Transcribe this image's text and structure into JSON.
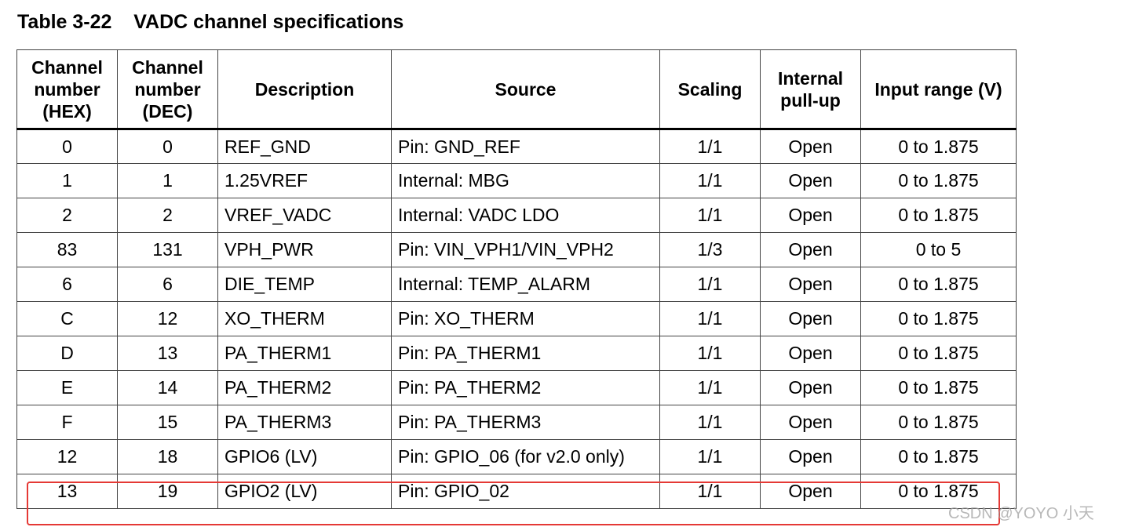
{
  "header": {
    "title": "Table 3-22    VADC channel specifications"
  },
  "table": {
    "columns": [
      "Channel number (HEX)",
      "Channel number (DEC)",
      "Description",
      "Source",
      "Scaling",
      "Internal pull-up",
      "Input range (V)"
    ],
    "rows": [
      [
        "0",
        "0",
        "REF_GND",
        "Pin: GND_REF",
        "1/1",
        "Open",
        "0 to 1.875"
      ],
      [
        "1",
        "1",
        "1.25VREF",
        "Internal: MBG",
        "1/1",
        "Open",
        "0 to 1.875"
      ],
      [
        "2",
        "2",
        "VREF_VADC",
        "Internal: VADC LDO",
        "1/1",
        "Open",
        "0 to 1.875"
      ],
      [
        "83",
        "131",
        "VPH_PWR",
        "Pin: VIN_VPH1/VIN_VPH2",
        "1/3",
        "Open",
        "0 to 5"
      ],
      [
        "6",
        "6",
        "DIE_TEMP",
        "Internal: TEMP_ALARM",
        "1/1",
        "Open",
        "0 to 1.875"
      ],
      [
        "C",
        "12",
        "XO_THERM",
        "Pin: XO_THERM",
        "1/1",
        "Open",
        "0 to 1.875"
      ],
      [
        "D",
        "13",
        "PA_THERM1",
        "Pin: PA_THERM1",
        "1/1",
        "Open",
        "0 to 1.875"
      ],
      [
        "E",
        "14",
        "PA_THERM2",
        "Pin: PA_THERM2",
        "1/1",
        "Open",
        "0 to 1.875"
      ],
      [
        "F",
        "15",
        "PA_THERM3",
        "Pin: PA_THERM3",
        "1/1",
        "Open",
        "0 to 1.875"
      ],
      [
        "12",
        "18",
        "GPIO6 (LV)",
        "Pin: GPIO_06 (for v2.0 only)",
        "1/1",
        "Open",
        "0 to 1.875"
      ],
      [
        "13",
        "19",
        "GPIO2 (LV)",
        "Pin: GPIO_02",
        "1/1",
        "Open",
        "0 to 1.875"
      ]
    ]
  },
  "watermark": "CSDN @YOYO 小天"
}
